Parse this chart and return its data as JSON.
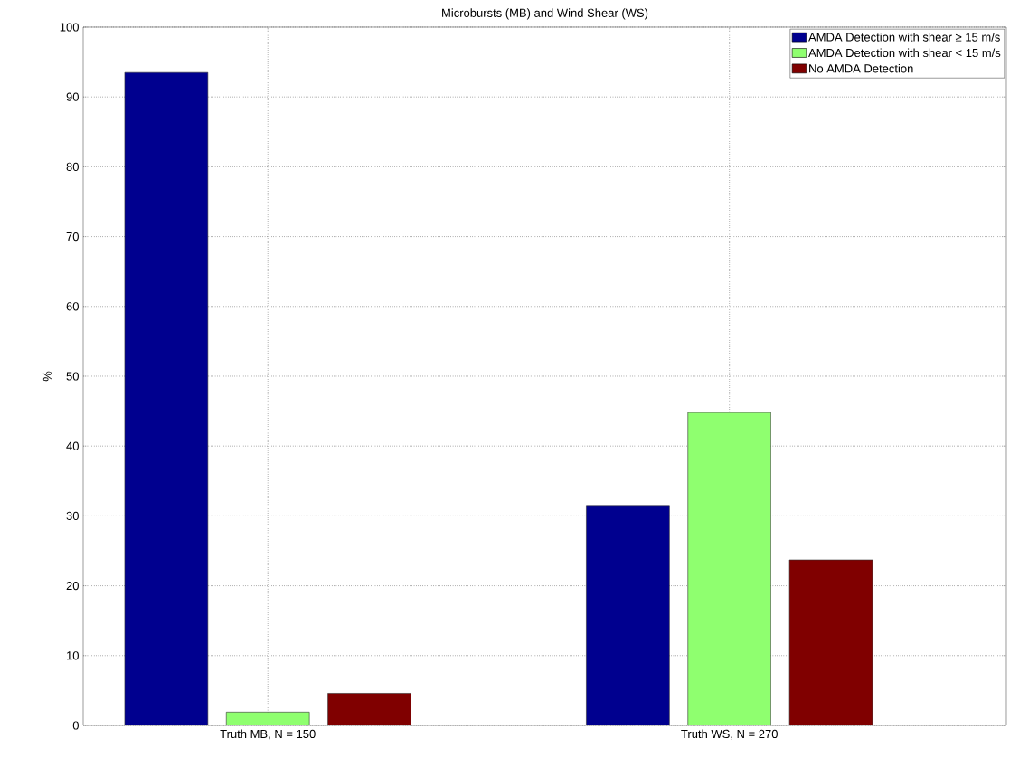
{
  "chart_data": {
    "type": "bar",
    "title": "Microbursts (MB) and Wind Shear (WS)",
    "ylabel": "%",
    "categories": [
      "Truth MB,  N = 150",
      "Truth WS,  N = 270"
    ],
    "series": [
      {
        "name": "AMDA Detection with shear ≥ 15 m/s",
        "color": "#00008f",
        "values": [
          93.5,
          31.5
        ]
      },
      {
        "name": "AMDA Detection with shear < 15 m/s",
        "color": "#8fff6f",
        "values": [
          1.9,
          44.8
        ]
      },
      {
        "name": "No AMDA Detection",
        "color": "#800000",
        "values": [
          4.6,
          23.7
        ]
      }
    ],
    "ylim": [
      0,
      100
    ],
    "yticks": [
      0,
      10,
      20,
      30,
      40,
      50,
      60,
      70,
      80,
      90,
      100
    ],
    "grid": true,
    "legend": "top right"
  }
}
